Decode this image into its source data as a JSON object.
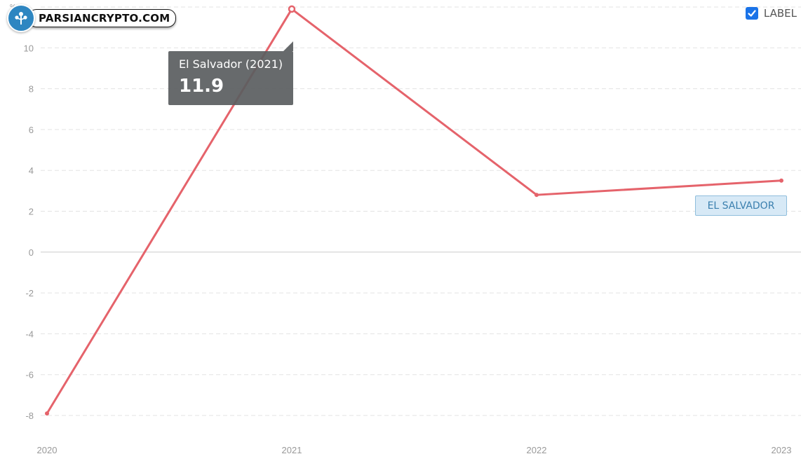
{
  "logo": {
    "text": "PARSIANCRYPTO.COM"
  },
  "toggle": {
    "label": "LABEL",
    "checked": true
  },
  "tooltip": {
    "title": "El Salvador (2021)",
    "value": "11.9"
  },
  "unit_symbol": "%",
  "colors": {
    "series": "#e5636b",
    "tooltip_bg": "#5a5d60",
    "label_bg": "#d7e9f6",
    "label_text": "#3a7fae",
    "checkbox": "#1a73e8"
  },
  "chart_data": {
    "type": "line",
    "x": [
      "2020",
      "2021",
      "2022",
      "2023"
    ],
    "series": [
      {
        "name": "EL SALVADOR",
        "values": [
          -7.9,
          11.9,
          2.8,
          3.5
        ]
      }
    ],
    "yticks": [
      -8,
      -6,
      -4,
      -2,
      0,
      2,
      4,
      6,
      8,
      10
    ],
    "ylim": [
      -9.2,
      12
    ],
    "grid": true,
    "highlighted_point": {
      "x": "2021",
      "value": 11.9
    }
  }
}
